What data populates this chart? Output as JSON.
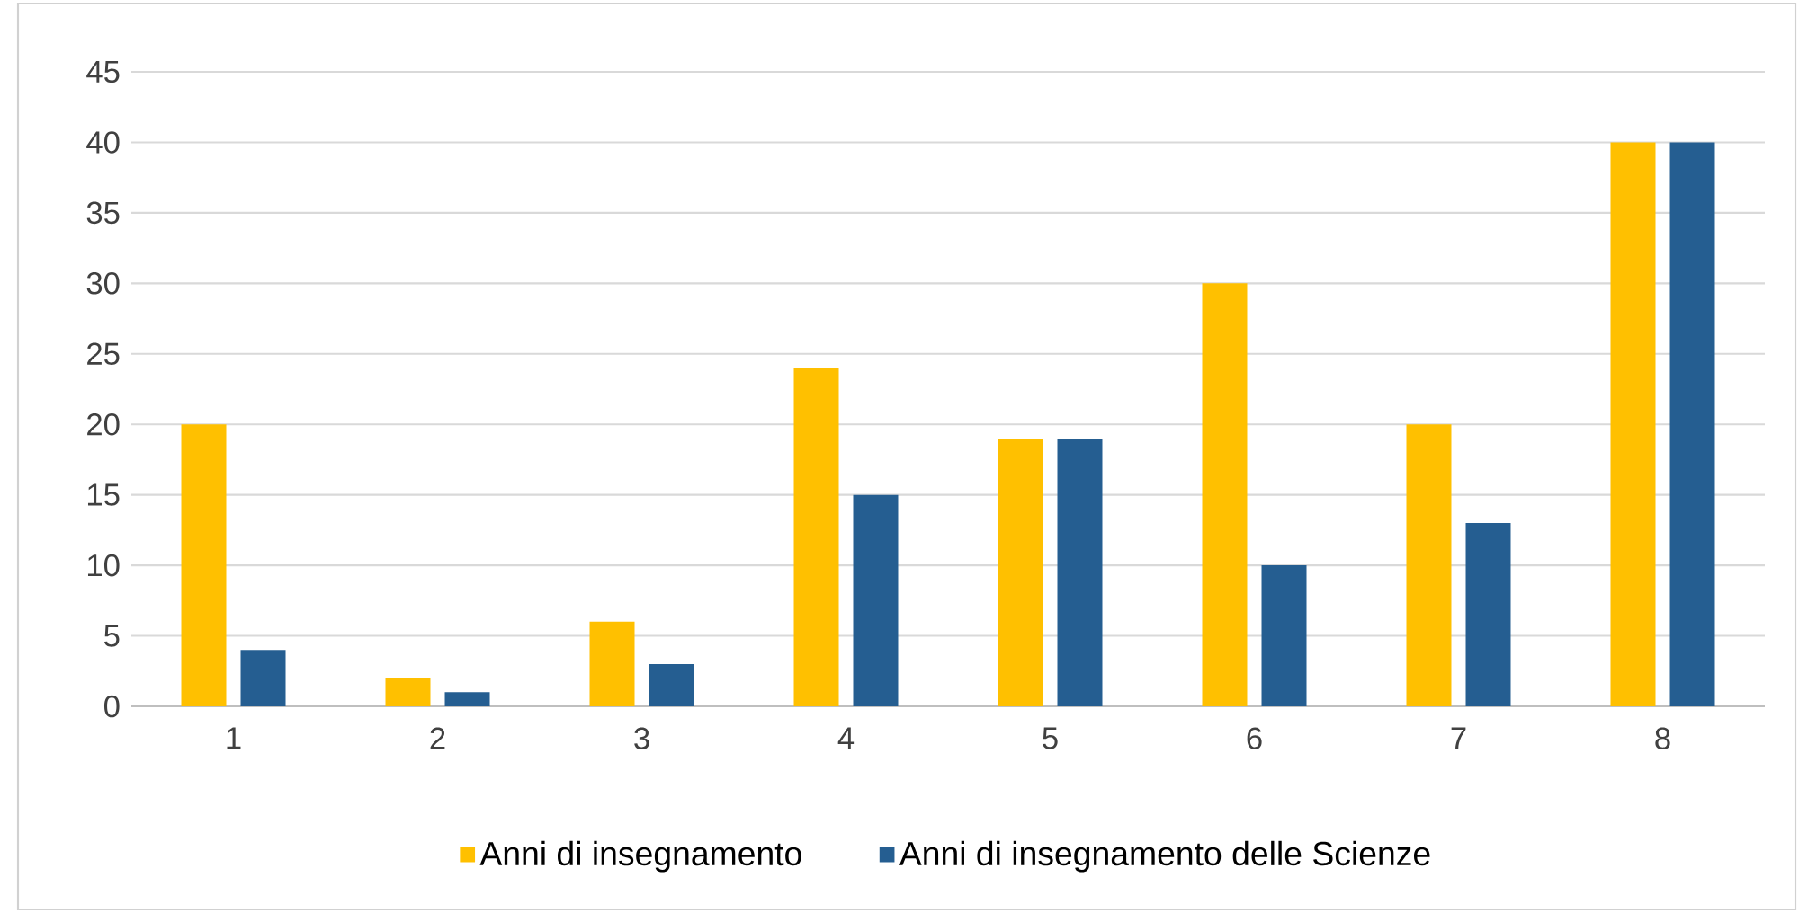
{
  "chart_data": {
    "type": "bar",
    "categories": [
      "1",
      "2",
      "3",
      "4",
      "5",
      "6",
      "7",
      "8"
    ],
    "series": [
      {
        "name": "Anni di insegnamento",
        "color": "#ffc000",
        "values": [
          20,
          2,
          6,
          24,
          19,
          30,
          20,
          40
        ]
      },
      {
        "name": "Anni di insegnamento delle Scienze",
        "color": "#255e91",
        "values": [
          4,
          1,
          3,
          15,
          19,
          10,
          13,
          40
        ]
      }
    ],
    "ylim": [
      0,
      45
    ],
    "yticks": [
      0,
      5,
      10,
      15,
      20,
      25,
      30,
      35,
      40,
      45
    ],
    "grid": "y",
    "legend": "bottom"
  }
}
